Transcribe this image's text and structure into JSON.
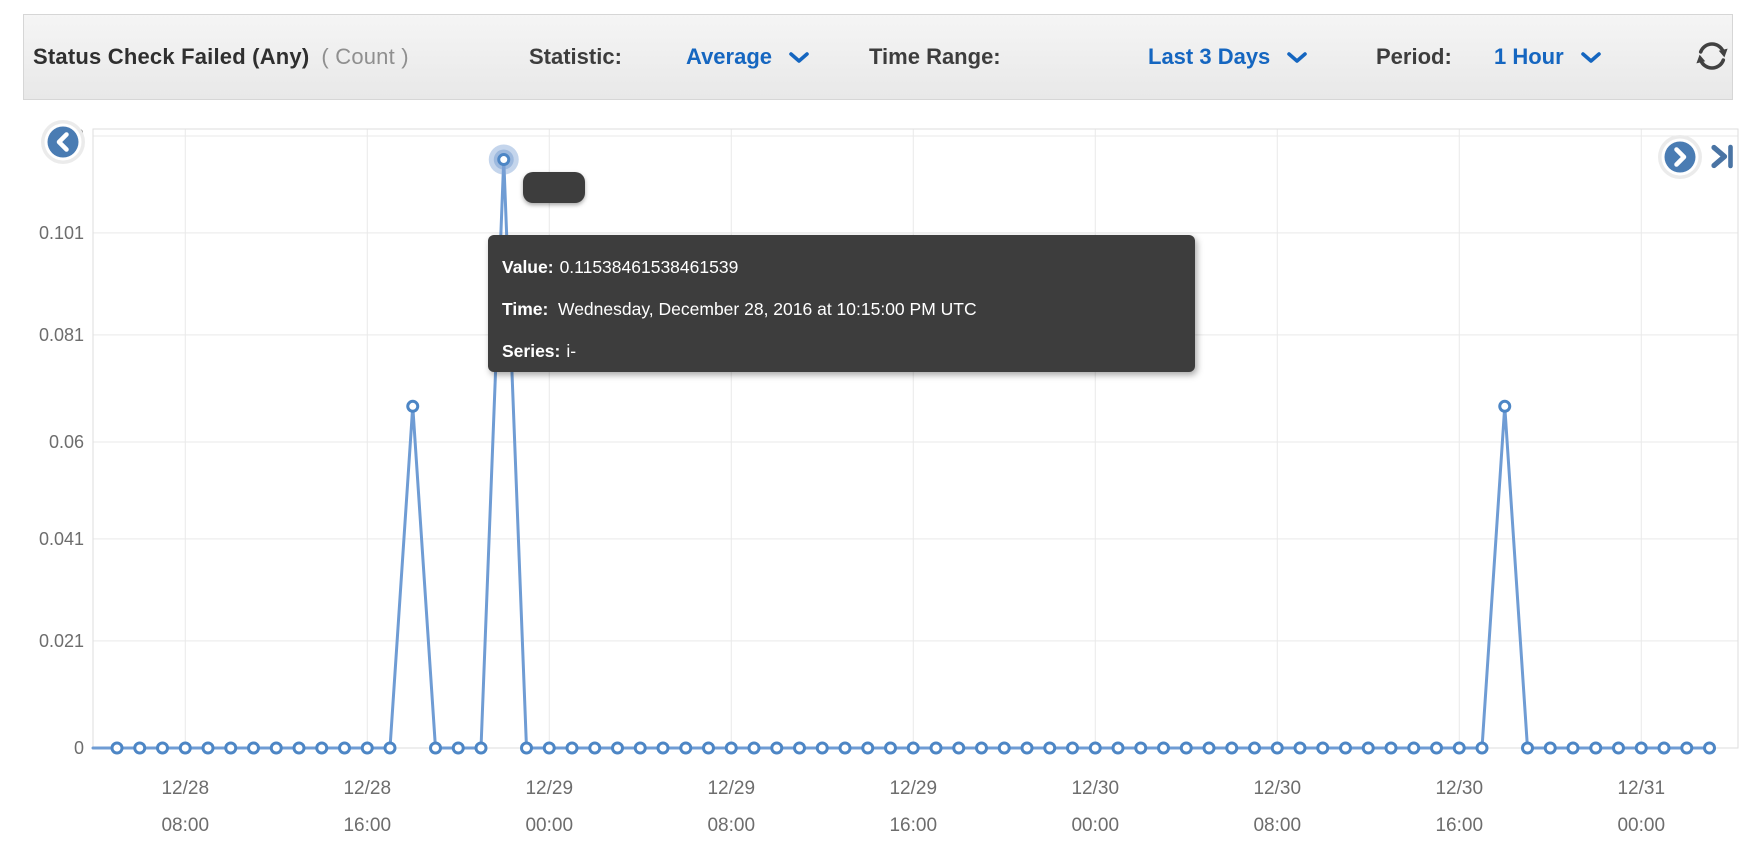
{
  "header": {
    "title": "Status Check Failed (Any)",
    "unit": "( Count )",
    "statistic_label": "Statistic:",
    "statistic_value": "Average",
    "time_range_label": "Time Range:",
    "time_range_value": "Last 3 Days",
    "period_label": "Period:",
    "period_value": "1 Hour"
  },
  "tooltip": {
    "value_label": "Value:",
    "value": "0.11538461538461539",
    "time_label": "Time:",
    "time": "Wednesday, December 28, 2016 at 10:15:00 PM UTC",
    "series_label": "Series:",
    "series": "i-"
  },
  "colors": {
    "accent_blue": "#1566c0",
    "line": "#6f9cd4",
    "dot_stroke": "#4d86c5",
    "halo": "#7da2d4",
    "grid": "#e9e9e9",
    "border": "#dedede",
    "axis_text": "#6d6d6d",
    "tooltip_bg": "#3d3d3d",
    "nav_circle": "#4a7cb3",
    "skip_icon": "#4a74a4",
    "refresh_icon": "#414141"
  },
  "chart_data": {
    "type": "line",
    "title": "Status Check Failed (Any)",
    "ylabel": "Count",
    "ylim": [
      0,
      0.122
    ],
    "grid": true,
    "legend": "none",
    "yticks": [
      0,
      0.021,
      0.041,
      0.06,
      0.081,
      0.101,
      0.12
    ],
    "ytick_labels": [
      "0",
      "0.021",
      "0.041",
      "0.06",
      "0.081",
      "0.101",
      "0.12"
    ],
    "x_start": "12/28 05:00",
    "x_interval_hours": 1,
    "xtick_indices": [
      3,
      11,
      19,
      27,
      35,
      43,
      51,
      59,
      67
    ],
    "xtick_labels": [
      [
        "12/28",
        "08:00"
      ],
      [
        "12/28",
        "16:00"
      ],
      [
        "12/29",
        "00:00"
      ],
      [
        "12/29",
        "08:00"
      ],
      [
        "12/29",
        "16:00"
      ],
      [
        "12/30",
        "00:00"
      ],
      [
        "12/30",
        "08:00"
      ],
      [
        "12/30",
        "16:00"
      ],
      [
        "12/31",
        "00:00"
      ]
    ],
    "series": [
      {
        "name": "i-",
        "values": [
          0,
          0,
          0,
          0,
          0,
          0,
          0,
          0,
          0,
          0,
          0,
          0,
          0,
          0.067,
          0,
          0,
          0,
          0.11538461538461539,
          0,
          0,
          0,
          0,
          0,
          0,
          0,
          0,
          0,
          0,
          0,
          0,
          0,
          0,
          0,
          0,
          0,
          0,
          0,
          0,
          0,
          0,
          0,
          0,
          0,
          0,
          0,
          0,
          0,
          0,
          0,
          0,
          0,
          0,
          0,
          0,
          0,
          0,
          0,
          0,
          0,
          0,
          0,
          0.067,
          0,
          0,
          0,
          0,
          0,
          0,
          0,
          0,
          0
        ]
      }
    ],
    "highlighted_point": {
      "index": 17,
      "value": 0.11538461538461539,
      "time": "Wednesday, December 28, 2016 at 10:15:00 PM UTC",
      "series": "i-"
    }
  }
}
